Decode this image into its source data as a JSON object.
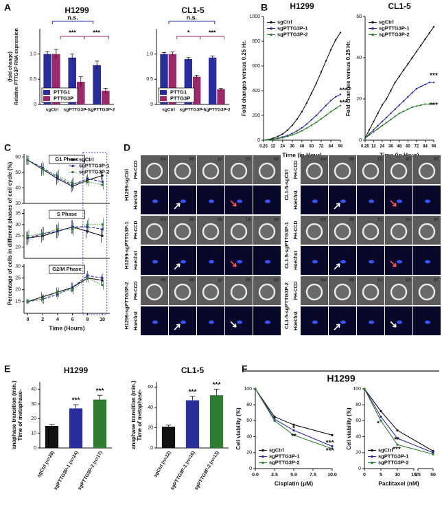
{
  "panels": [
    "A",
    "B",
    "C",
    "D",
    "E",
    "F"
  ],
  "panel_f_title": "H1299",
  "D": {
    "channels": [
      "PH-CCD",
      "Hoechst"
    ],
    "groups": [
      {
        "rows": [
          {
            "label": "H1299-sgCtrl",
            "times": [
              "-04",
              "00",
              "10",
              "20",
              "30"
            ]
          },
          {
            "label": "H1299-sgPTTG3P-1",
            "times": [
              "-04",
              "00",
              "09",
              "19",
              "30"
            ]
          },
          {
            "label": "H1299-sgPTTG3P-2",
            "times": [
              "-05",
              "00",
              "10",
              "25",
              "30"
            ]
          }
        ]
      },
      {
        "rows": [
          {
            "label": "CL1-5-sgCtrl",
            "times": [
              "-04",
              "00",
              "10",
              "20",
              "30"
            ]
          },
          {
            "label": "CL1-5-sgPTTG3P-1",
            "times": [
              "-05",
              "00",
              "10",
              "20",
              "30"
            ]
          },
          {
            "label": "CL1-5-sgPTTG3P-2",
            "times": [
              "-04",
              "00",
              "10",
              "20",
              "30"
            ]
          }
        ]
      }
    ]
  },
  "chart_data": [
    {
      "type": "bar",
      "title": "H1299",
      "ylabel": [
        "Relative PTTG3P RNA expression",
        "(fold change)"
      ],
      "categories": [
        "sgCtrl",
        "sgPTTG3P-1",
        "sgPTTG3P-2"
      ],
      "series": [
        {
          "name": "PTTG1",
          "color": "#2a2e9c",
          "values": [
            1.0,
            0.93,
            0.78
          ],
          "errors": [
            0.05,
            0.07,
            0.08
          ]
        },
        {
          "name": "PTTG3P",
          "color": "#9c2a6b",
          "values": [
            1.0,
            0.45,
            0.27
          ],
          "errors": [
            0.09,
            0.1,
            0.05
          ]
        }
      ],
      "ylim": [
        0,
        1.5
      ],
      "yticks": [
        0,
        0.5,
        {
          "value": 1,
          "label": "1.0"
        }
      ],
      "legend": "lower left",
      "annotations": [
        {
          "text": "n.s.",
          "color": "#2a2e9c"
        },
        {
          "text": "***",
          "color": "#9c2a6b"
        },
        {
          "text": "***",
          "color": "#9c2a6b"
        }
      ]
    },
    {
      "type": "bar",
      "title": "CL1-5",
      "categories": [
        "sgCtrl",
        "sgPTTG3P-1",
        "sgPTTG3P-2"
      ],
      "series": [
        {
          "name": "PTTG1",
          "color": "#2a2e9c",
          "values": [
            1.0,
            0.9,
            0.93
          ],
          "errors": [
            0.03,
            0.03,
            0.03
          ]
        },
        {
          "name": "PTTG3P",
          "color": "#9c2a6b",
          "values": [
            1.0,
            0.55,
            0.3
          ],
          "errors": [
            0.04,
            0.03,
            0.02
          ]
        }
      ],
      "ylim": [
        0,
        1.5
      ],
      "yticks": [
        0,
        0.5,
        {
          "value": 1,
          "label": "1.0"
        }
      ],
      "legend": "lower left",
      "annotations": [
        {
          "text": "n.s.",
          "color": "#2a2e9c"
        },
        {
          "text": "*",
          "color": "#9c2a6b"
        },
        {
          "text": "***",
          "color": "#9c2a6b"
        }
      ]
    },
    {
      "type": "line",
      "title": "H1299",
      "ylabel": "Fold changes versus 0.25 Hr.",
      "xlabel": "Time (in Hour)",
      "x": [
        0.25,
        6,
        12,
        18,
        24,
        30,
        36,
        42,
        48,
        54,
        60,
        66,
        72,
        78,
        84,
        90,
        96
      ],
      "series": [
        {
          "name": "sgCtrl",
          "color": "#111111",
          "values": [
            1,
            5,
            15,
            30,
            50,
            80,
            120,
            170,
            230,
            300,
            380,
            460,
            550,
            640,
            730,
            810,
            870
          ]
        },
        {
          "name": "sgPTTG3P-1",
          "color": "#2a2e9c",
          "values": [
            1,
            3,
            8,
            15,
            25,
            38,
            55,
            75,
            100,
            130,
            165,
            200,
            240,
            280,
            320,
            350,
            370
          ]
        },
        {
          "name": "sgPTTG3P-2",
          "color": "#2e7d32",
          "values": [
            1,
            3,
            7,
            13,
            20,
            30,
            42,
            58,
            76,
            97,
            120,
            145,
            172,
            200,
            230,
            255,
            280
          ]
        }
      ],
      "xlim": [
        0.25,
        96
      ],
      "xticks": [
        0.25,
        12,
        24,
        36,
        48,
        60,
        72,
        84,
        96
      ],
      "ylim": [
        0,
        1000
      ],
      "yticks": [
        0,
        200,
        400,
        600,
        800,
        1000
      ],
      "legend": "upper left",
      "annotations": [
        {
          "text": "***",
          "color": "#2a2e9c"
        },
        {
          "text": "***",
          "color": "#2e7d32"
        }
      ]
    },
    {
      "type": "line",
      "title": "CL1-5",
      "ylabel": "Fold changes versus 0.25 Hr.",
      "xlabel": "Time (in Hour)",
      "x": [
        0.25,
        6,
        12,
        18,
        24,
        30,
        36,
        42,
        48,
        54,
        60,
        66,
        72,
        78,
        84,
        90,
        96
      ],
      "series": [
        {
          "name": "sgCtrl",
          "color": "#111111",
          "values": [
            1,
            5,
            9,
            13,
            17,
            20,
            24,
            28,
            31,
            34,
            37,
            40,
            43,
            46,
            49,
            52,
            55
          ]
        },
        {
          "name": "sgPTTG3P-1",
          "color": "#2a2e9c",
          "values": [
            1,
            3,
            5,
            7,
            9,
            11,
            13,
            15,
            17,
            19,
            21,
            23,
            25,
            26,
            27,
            28,
            28
          ]
        },
        {
          "name": "sgPTTG3P-2",
          "color": "#2e7d32",
          "values": [
            1,
            2.5,
            4,
            5.5,
            7,
            8.5,
            10,
            11.5,
            13,
            14,
            15,
            16,
            16.5,
            17,
            17.5,
            17.5,
            17.5
          ]
        }
      ],
      "xlim": [
        0.25,
        96
      ],
      "xticks": [
        0.25,
        12,
        24,
        36,
        48,
        60,
        72,
        84,
        96
      ],
      "ylim": [
        0,
        60
      ],
      "yticks": [
        0,
        20,
        40,
        60
      ],
      "legend": "upper left",
      "annotations": [
        {
          "text": "***",
          "color": "#2a2e9c"
        },
        {
          "text": "***",
          "color": "#2e7d32"
        }
      ]
    },
    {
      "type": "line",
      "title": "G1 Phase",
      "x": [
        0,
        2,
        4,
        6,
        8,
        10
      ],
      "series": [
        {
          "name": "sgCtrl",
          "color": "#111111",
          "linestyle": "solid",
          "values": [
            58,
            52,
            46,
            41,
            45,
            48
          ],
          "errors": [
            3,
            4,
            4,
            4,
            3,
            3
          ]
        },
        {
          "name": "sgPTTG3P-1",
          "color": "#2a2e9c",
          "linestyle": "dashed",
          "values": [
            58,
            53,
            47,
            42,
            46,
            44
          ],
          "errors": [
            3,
            4,
            4,
            4,
            3,
            3
          ]
        },
        {
          "name": "sgPTTG3P-2",
          "color": "#2e7d32",
          "linestyle": "dotted",
          "values": [
            58,
            52,
            48,
            43,
            44,
            42
          ],
          "errors": [
            3,
            4,
            4,
            4,
            3,
            3
          ]
        }
      ],
      "xlim": [
        -0.5,
        11
      ],
      "ylim": [
        30,
        62
      ],
      "yticks": [
        30,
        40,
        50,
        60
      ],
      "legend": "upper right"
    },
    {
      "type": "line",
      "title": "S Phase",
      "ylabel": "Percentage of cells in different phases of cell cycle (%)",
      "x": [
        0,
        2,
        4,
        6,
        8,
        10
      ],
      "series": [
        {
          "name": "sgCtrl",
          "color": "#111111",
          "linestyle": "solid",
          "values": [
            24,
            25,
            27,
            29,
            27,
            25
          ],
          "errors": [
            3,
            3,
            3,
            3,
            3,
            3
          ]
        },
        {
          "name": "sgPTTG3P-1",
          "color": "#2a2e9c",
          "linestyle": "dashed",
          "values": [
            24,
            26,
            27,
            29,
            29,
            28
          ],
          "errors": [
            3,
            3,
            3,
            3,
            3,
            3
          ]
        },
        {
          "name": "sgPTTG3P-2",
          "color": "#2e7d32",
          "linestyle": "dotted",
          "values": [
            25,
            26,
            28,
            28,
            30,
            30
          ],
          "errors": [
            3,
            3,
            3,
            3,
            3,
            3
          ]
        }
      ],
      "xlim": [
        -0.5,
        11
      ],
      "ylim": [
        15,
        37
      ],
      "yticks": [
        20,
        25,
        30,
        35
      ]
    },
    {
      "type": "line",
      "title": "G2/M Phase",
      "xlabel": "Time (Hours)",
      "x": [
        0,
        2,
        4,
        6,
        8,
        10
      ],
      "series": [
        {
          "name": "sgCtrl",
          "color": "#111111",
          "linestyle": "solid",
          "values": [
            15,
            17,
            19,
            21,
            25,
            24
          ],
          "errors": [
            1,
            2,
            2,
            2,
            2,
            2
          ]
        },
        {
          "name": "sgPTTG3P-1",
          "color": "#2a2e9c",
          "linestyle": "dashed",
          "values": [
            15,
            16,
            18,
            21,
            26,
            25
          ],
          "errors": [
            1,
            2,
            2,
            2,
            2,
            2
          ]
        },
        {
          "name": "sgPTTG3P-2",
          "color": "#2e7d32",
          "linestyle": "dotted",
          "values": [
            15,
            16,
            19,
            20,
            25,
            22
          ],
          "errors": [
            1,
            2,
            2,
            2,
            2,
            2
          ]
        }
      ],
      "xlim": [
        -0.5,
        11
      ],
      "xticks": [
        0,
        2,
        4,
        6,
        8,
        10
      ],
      "ylim": [
        10,
        31
      ],
      "yticks": [
        15,
        20,
        25,
        30
      ]
    },
    {
      "type": "bar",
      "title": "H1299",
      "ylabel": [
        "Time of metaphase-",
        "anaphase transition (min.)"
      ],
      "categories": [
        "sgCtrl (n=28)",
        "sgPTTG3P-1 (n=24)",
        "sgPTTG3P-2 (n=17)"
      ],
      "values": [
        15,
        27,
        33
      ],
      "errors": [
        1,
        2.5,
        3
      ],
      "colors": [
        "#111111",
        "#2a2e9c",
        "#2e7d32"
      ],
      "ylim": [
        0,
        45
      ],
      "yticks": [
        0,
        10,
        20,
        30,
        40
      ],
      "annotations": [
        {
          "text": "***",
          "color": "#2a2e9c"
        },
        {
          "text": "***",
          "color": "#2e7d32"
        }
      ]
    },
    {
      "type": "bar",
      "title": "CL1-5",
      "ylabel": [
        "Time of metaphase-",
        "anaphase transition (min.)"
      ],
      "categories": [
        "sgCtrl (n=22)",
        "sgPTTG3P-1 (n=16)",
        "sgPTTG3P-2 (n=13)"
      ],
      "values": [
        21,
        47,
        52
      ],
      "errors": [
        1.5,
        4,
        6
      ],
      "colors": [
        "#111111",
        "#2a2e9c",
        "#2e7d32"
      ],
      "ylim": [
        0,
        65
      ],
      "yticks": [
        0,
        20,
        40,
        60
      ],
      "annotations": [
        {
          "text": "***",
          "color": "#2a2e9c"
        },
        {
          "text": "***",
          "color": "#2e7d32"
        }
      ]
    },
    {
      "type": "line",
      "ylabel": "Cell viability (%)",
      "xlabel": "Cisplatin (μM)",
      "x": [
        0,
        2.5,
        5,
        10
      ],
      "series": [
        {
          "name": "sgCtrl",
          "color": "#111111",
          "values": [
            100,
            65,
            55,
            42
          ]
        },
        {
          "name": "sgPTTG3P-1",
          "color": "#2a2e9c",
          "values": [
            100,
            62,
            48,
            28
          ]
        },
        {
          "name": "sgPTTG3P-2",
          "color": "#2e7d32",
          "values": [
            100,
            60,
            42,
            25
          ]
        }
      ],
      "xlim": [
        0,
        10
      ],
      "xticks": [
        {
          "value": 0,
          "label": "0.0"
        },
        2.5,
        {
          "value": 5,
          "label": "5.0"
        },
        7.5,
        {
          "value": 10,
          "label": "10.0"
        }
      ],
      "ylim": [
        0,
        100
      ],
      "yticks": [
        0,
        20,
        40,
        60,
        80,
        100
      ],
      "legend": "lower left",
      "annotations": [
        {
          "text": "*",
          "color": "#2a2e9c"
        },
        {
          "text": "**",
          "color": "#2e7d32"
        },
        {
          "text": "***",
          "color": "#2a2e9c"
        },
        {
          "text": "***",
          "color": "#2e7d32"
        }
      ]
    },
    {
      "type": "line",
      "ylabel": "Cell viability (%)",
      "xlabel": "Paclitaxel (nM)",
      "x": [
        0,
        5,
        10,
        50
      ],
      "series": [
        {
          "name": "sgCtrl",
          "color": "#111111",
          "values": [
            100,
            72,
            48,
            22
          ]
        },
        {
          "name": "sgPTTG3P-1",
          "color": "#2a2e9c",
          "values": [
            100,
            65,
            38,
            20
          ]
        },
        {
          "name": "sgPTTG3P-2",
          "color": "#2e7d32",
          "values": [
            100,
            60,
            30,
            18
          ]
        }
      ],
      "xlim": [
        0,
        50
      ],
      "xbreak": [
        15,
        25
      ],
      "xticks": [
        0,
        5,
        10,
        15,
        25,
        50
      ],
      "ylim": [
        0,
        100
      ],
      "yticks": [
        0,
        20,
        40,
        60,
        80,
        100
      ],
      "legend": "lower left",
      "annotations": [
        {
          "text": "*",
          "color": "#2e7d32"
        },
        {
          "text": "**",
          "color": "#2a2e9c"
        },
        {
          "text": "***",
          "color": "#2e7d32"
        }
      ]
    }
  ]
}
